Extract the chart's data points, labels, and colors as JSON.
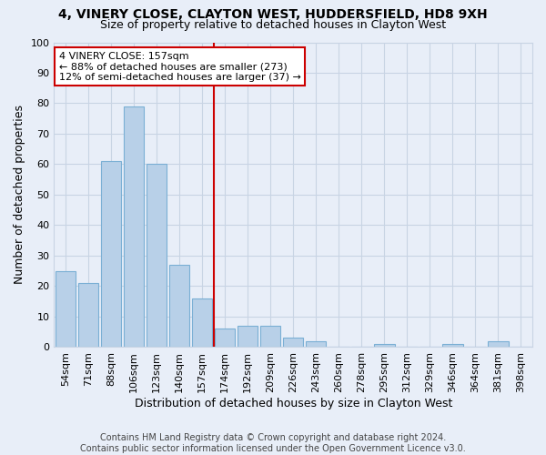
{
  "title_line1": "4, VINERY CLOSE, CLAYTON WEST, HUDDERSFIELD, HD8 9XH",
  "title_line2": "Size of property relative to detached houses in Clayton West",
  "xlabel": "Distribution of detached houses by size in Clayton West",
  "ylabel": "Number of detached properties",
  "footnote": "Contains HM Land Registry data © Crown copyright and database right 2024.\nContains public sector information licensed under the Open Government Licence v3.0.",
  "categories": [
    "54sqm",
    "71sqm",
    "88sqm",
    "106sqm",
    "123sqm",
    "140sqm",
    "157sqm",
    "174sqm",
    "192sqm",
    "209sqm",
    "226sqm",
    "243sqm",
    "260sqm",
    "278sqm",
    "295sqm",
    "312sqm",
    "329sqm",
    "346sqm",
    "364sqm",
    "381sqm",
    "398sqm"
  ],
  "values": [
    25,
    21,
    61,
    79,
    60,
    27,
    16,
    6,
    7,
    7,
    3,
    2,
    0,
    0,
    1,
    0,
    0,
    1,
    0,
    2,
    0
  ],
  "bar_color": "#b8d0e8",
  "bar_edge_color": "#7aafd4",
  "vline_index": 6,
  "vline_color": "#cc0000",
  "annotation_line1": "4 VINERY CLOSE: 157sqm",
  "annotation_line2": "← 88% of detached houses are smaller (273)",
  "annotation_line3": "12% of semi-detached houses are larger (37) →",
  "annotation_box_color": "#ffffff",
  "annotation_box_edge": "#cc0000",
  "ylim": [
    0,
    100
  ],
  "yticks": [
    0,
    10,
    20,
    30,
    40,
    50,
    60,
    70,
    80,
    90,
    100
  ],
  "grid_color": "#c8d4e4",
  "background_color": "#e8eef8",
  "title_fontsize": 10,
  "subtitle_fontsize": 9,
  "axis_label_fontsize": 9,
  "tick_fontsize": 8,
  "footnote_fontsize": 7
}
